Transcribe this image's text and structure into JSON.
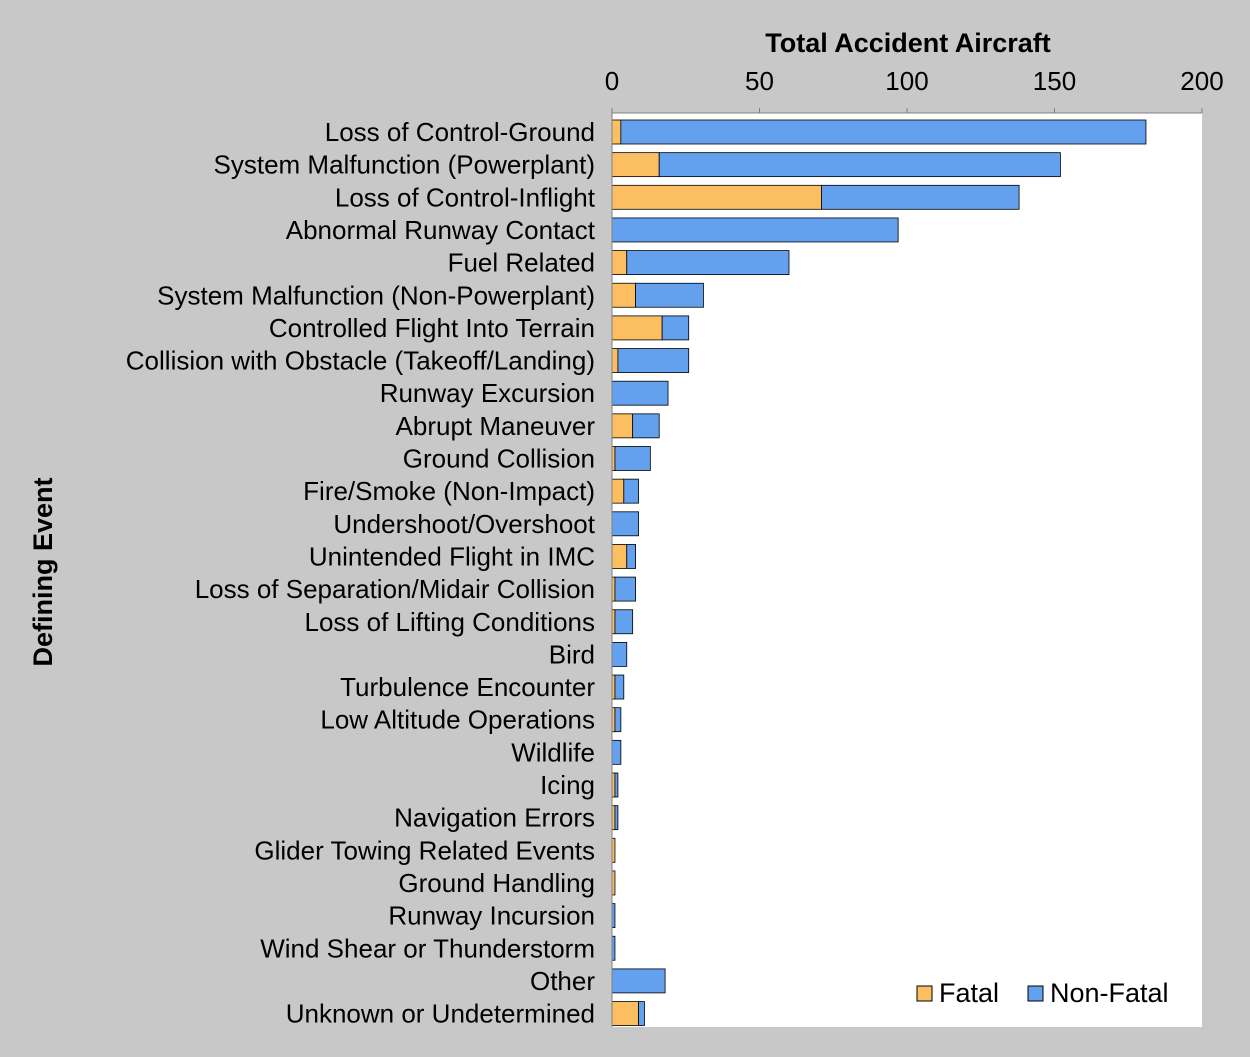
{
  "chart_data": {
    "type": "bar",
    "orientation": "horizontal",
    "stacked": true,
    "xlabel": "Total Accident Aircraft",
    "ylabel": "Defining Event",
    "xlim": [
      0,
      200
    ],
    "xticks": [
      0,
      50,
      100,
      150,
      200
    ],
    "x_axis_position": "top",
    "grid": false,
    "legend_position": "bottom-right",
    "categories": [
      "Loss of Control-Ground",
      "System Malfunction (Powerplant)",
      "Loss of Control-Inflight",
      "Abnormal Runway Contact",
      "Fuel Related",
      "System Malfunction (Non-Powerplant)",
      "Controlled Flight Into Terrain",
      "Collision with Obstacle (Takeoff/Landing)",
      "Runway Excursion",
      "Abrupt Maneuver",
      "Ground Collision",
      "Fire/Smoke (Non-Impact)",
      "Undershoot/Overshoot",
      "Unintended Flight in IMC",
      "Loss of Separation/Midair Collision",
      "Loss of Lifting Conditions",
      "Bird",
      "Turbulence Encounter",
      "Low Altitude Operations",
      "Wildlife",
      "Icing",
      "Navigation Errors",
      "Glider Towing Related Events",
      "Ground Handling",
      "Runway Incursion",
      "Wind Shear or Thunderstorm",
      "Other",
      "Unknown or Undetermined"
    ],
    "series": [
      {
        "name": "Fatal",
        "color": "#fbbf62",
        "values": [
          3,
          16,
          71,
          0,
          5,
          8,
          17,
          2,
          0,
          7,
          1,
          4,
          0,
          5,
          1,
          1,
          0,
          1,
          1,
          0,
          1,
          1,
          1,
          1,
          0,
          0,
          0,
          9
        ]
      },
      {
        "name": "Non-Fatal",
        "color": "#63a0ee",
        "values": [
          178,
          136,
          67,
          97,
          55,
          23,
          9,
          24,
          19,
          9,
          12,
          5,
          9,
          3,
          7,
          6,
          5,
          3,
          2,
          3,
          1,
          1,
          0,
          0,
          1,
          1,
          18,
          2
        ]
      }
    ]
  }
}
